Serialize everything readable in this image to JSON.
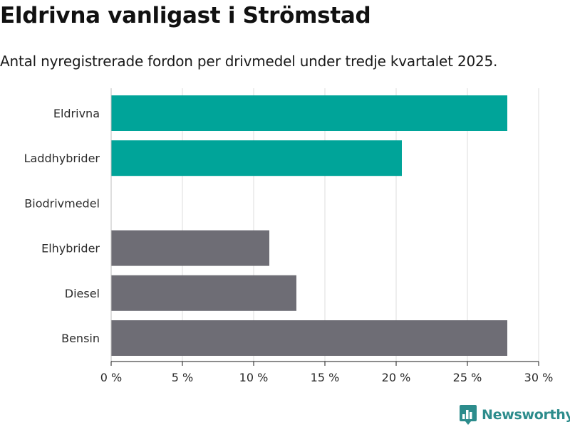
{
  "header": {
    "title": "Eldrivna vanligast i Strömstad",
    "subtitle": "Antal nyregistrerade fordon per drivmedel under tredje kvartalet 2025."
  },
  "brand": {
    "name": "Newsworthy",
    "color": "#2c8c8c"
  },
  "chart_data": {
    "type": "bar",
    "orientation": "horizontal",
    "title": "Eldrivna vanligast i Strömstad",
    "subtitle": "Antal nyregistrerade fordon per drivmedel under tredje kvartalet 2025.",
    "xlabel": "",
    "ylabel": "",
    "unit": "%",
    "xlim": [
      0,
      30
    ],
    "ticks": [
      0,
      5,
      10,
      15,
      20,
      25,
      30
    ],
    "tick_labels": [
      "0 %",
      "5 %",
      "10 %",
      "15 %",
      "20 %",
      "25 %",
      "30 %"
    ],
    "grid": true,
    "categories": [
      "Eldrivna",
      "Laddhybrider",
      "Biodrivmedel",
      "Elhybrider",
      "Diesel",
      "Bensin"
    ],
    "values": [
      27.8,
      20.4,
      0,
      11.1,
      13.0,
      27.8
    ],
    "colors": [
      "#00a499",
      "#00a499",
      "#00a499",
      "#6e6d75",
      "#6e6d75",
      "#6e6d75"
    ]
  }
}
